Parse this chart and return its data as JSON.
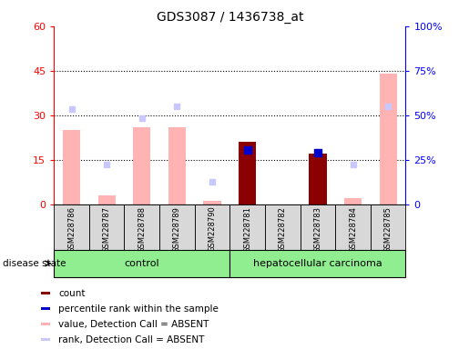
{
  "title": "GDS3087 / 1436738_at",
  "samples": [
    "GSM228786",
    "GSM228787",
    "GSM228788",
    "GSM228789",
    "GSM228790",
    "GSM228781",
    "GSM228782",
    "GSM228783",
    "GSM228784",
    "GSM228785"
  ],
  "value_absent": [
    25.0,
    3.0,
    26.0,
    26.0,
    1.0,
    null,
    null,
    null,
    2.0,
    44.0
  ],
  "rank_absent": [
    32.0,
    13.5,
    29.0,
    33.0,
    7.5,
    null,
    null,
    null,
    13.5,
    33.0
  ],
  "count_present": [
    null,
    null,
    null,
    null,
    null,
    21.0,
    null,
    17.0,
    null,
    null
  ],
  "percentile_present": [
    null,
    null,
    null,
    null,
    null,
    30.5,
    null,
    29.0,
    null,
    null
  ],
  "ylim_left": [
    0,
    60
  ],
  "ylim_right": [
    0,
    100
  ],
  "yticks_left": [
    0,
    15,
    30,
    45,
    60
  ],
  "yticks_right": [
    0,
    25,
    50,
    75,
    100
  ],
  "ytick_labels_right": [
    "0",
    "25%",
    "50%",
    "75%",
    "100%"
  ],
  "grid_values": [
    15,
    30,
    45
  ],
  "color_value_absent": "#ffb3b3",
  "color_rank_absent": "#c8c8ff",
  "color_count_present": "#8b0000",
  "color_percentile_present": "#0000cc",
  "bar_width": 0.5
}
